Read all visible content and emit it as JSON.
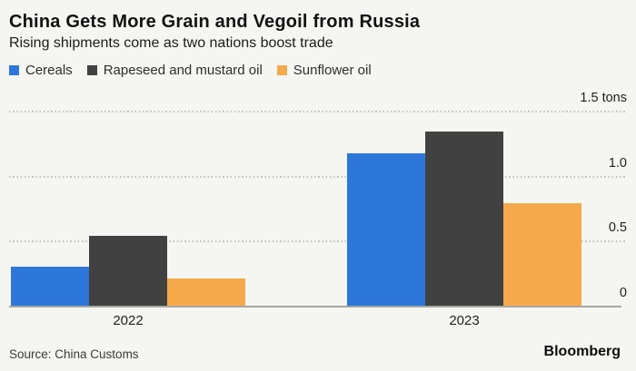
{
  "chart_data": {
    "type": "bar",
    "title": "China Gets More Grain and Vegoil from Russia",
    "subtitle": "Rising shipments come as two nations boost trade",
    "categories": [
      "2022",
      "2023"
    ],
    "series": [
      {
        "name": "Cereals",
        "color": "#2d77db",
        "values": [
          0.3,
          1.17
        ]
      },
      {
        "name": "Rapeseed and mustard oil",
        "color": "#414141",
        "values": [
          0.54,
          1.34
        ]
      },
      {
        "name": "Sunflower oil",
        "color": "#f5a94b",
        "values": [
          0.21,
          0.79
        ]
      }
    ],
    "unit": "tons",
    "ylim": [
      0,
      1.5
    ],
    "y_ticks": [
      {
        "value": 0,
        "label": "0"
      },
      {
        "value": 0.5,
        "label": "0.5"
      },
      {
        "value": 1.0,
        "label": "1.0"
      },
      {
        "value": 1.5,
        "label": "1.5 tons"
      }
    ],
    "grid": "horizontal-dotted",
    "legend_position": "top-left"
  },
  "footer": {
    "source": "Source: China Customs",
    "brand": "Bloomberg"
  },
  "colors": {
    "background": "#f5f5f2",
    "gridline": "#c3c3c0",
    "axis": "#a6a6a3",
    "text": "#1d1d1d"
  }
}
